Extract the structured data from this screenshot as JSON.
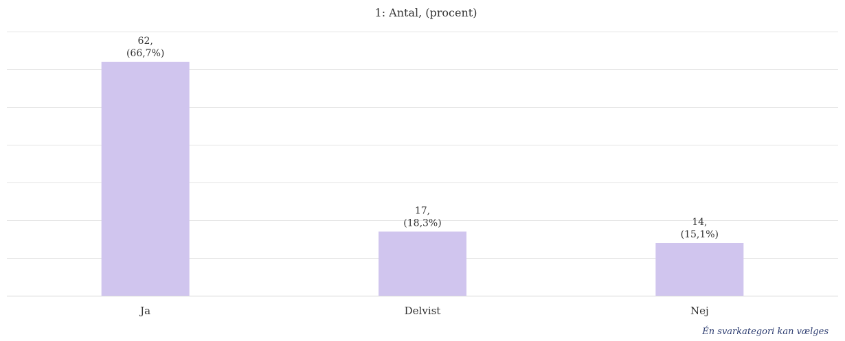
{
  "chart_data": {
    "type": "bar",
    "title": "1: Antal, (procent)",
    "categories": [
      "Ja",
      "Delvist",
      "Nej"
    ],
    "values": [
      62,
      17,
      14
    ],
    "data_labels": [
      [
        "62,",
        "(66,7%)"
      ],
      [
        "17,",
        "(18,3%)"
      ],
      [
        "14,",
        "(15,1%)"
      ]
    ],
    "ylim": [
      0,
      70
    ],
    "grid": true,
    "bar_color": "#d0c5ee",
    "grid_color": "#e3e3e3"
  },
  "footnote": "Én svarkategori kan vælges"
}
